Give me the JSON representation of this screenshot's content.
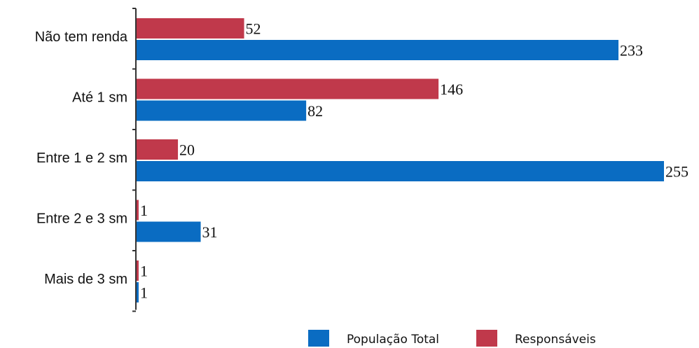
{
  "chart_data": {
    "type": "bar",
    "orientation": "horizontal",
    "categories": [
      "Não tem renda",
      "Até 1 sm",
      "Entre 1 e 2 sm",
      "Entre 2 e 3 sm",
      "Mais de 3 sm"
    ],
    "series": [
      {
        "name": "Responsáveis",
        "values": [
          52,
          146,
          20,
          1,
          1
        ],
        "color": "#c0394b"
      },
      {
        "name": "População Total",
        "values": [
          233,
          82,
          255,
          31,
          1
        ],
        "color": "#0a6cc2"
      }
    ],
    "legend_order": [
      "População Total",
      "Responsáveis"
    ],
    "legend_position": "bottom-center",
    "xlim": [
      0,
      255
    ],
    "grid": false,
    "title": "",
    "xlabel": "",
    "ylabel": ""
  }
}
